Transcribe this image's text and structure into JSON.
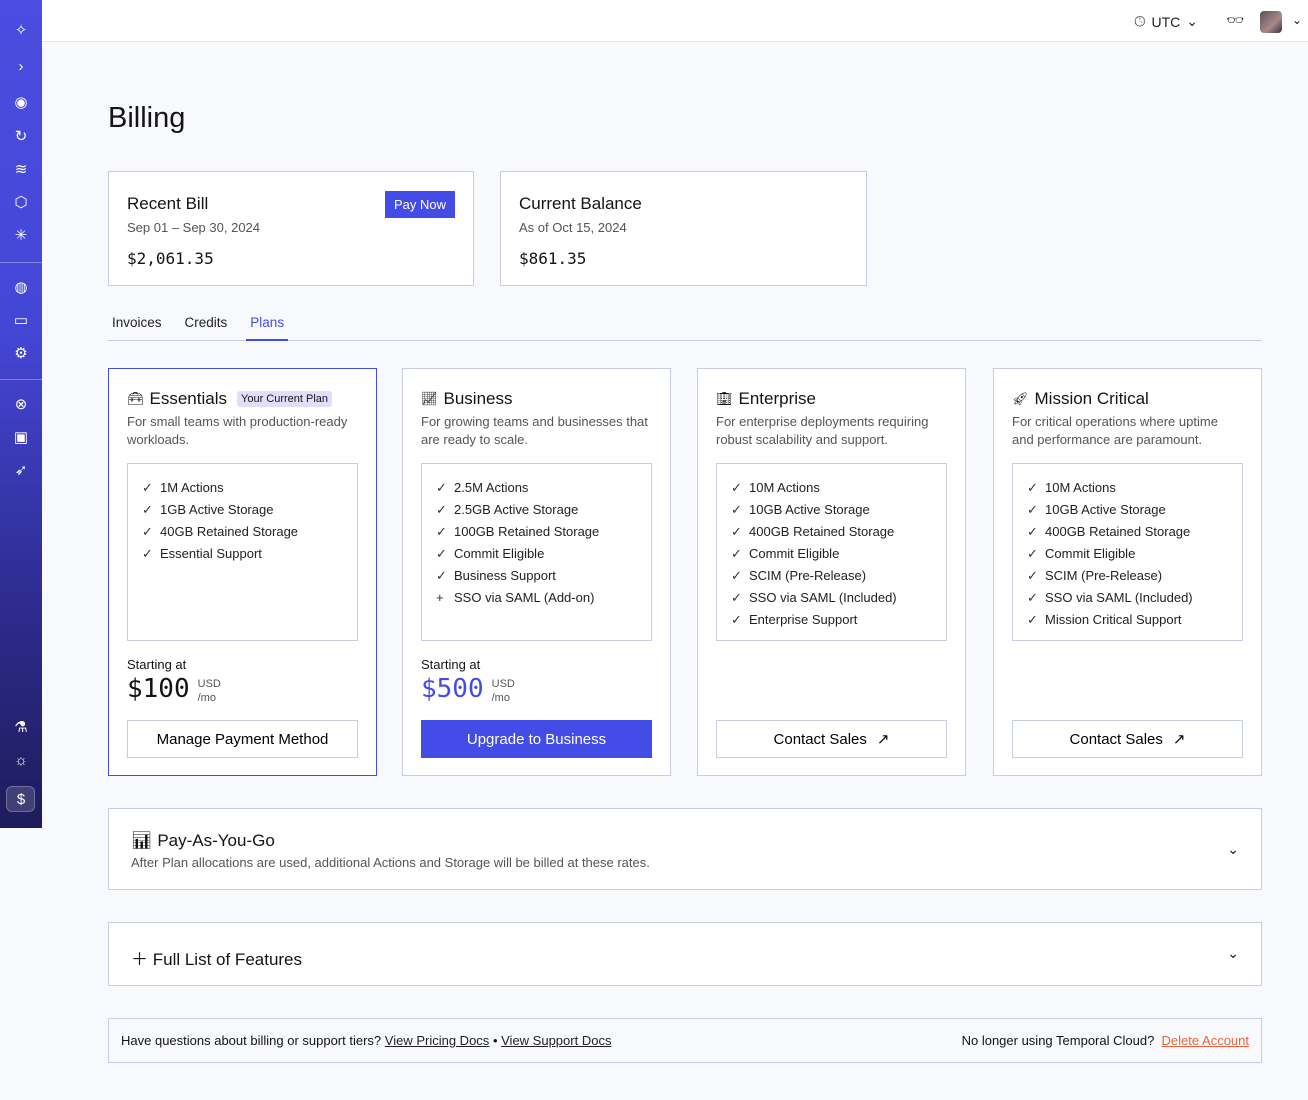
{
  "sidebar": {
    "icons": [
      "compass-icon",
      "chevron-right-icon",
      "eye-icon",
      "history-icon",
      "layers-icon",
      "cube-icon",
      "asterisk-icon",
      "globe-icon",
      "credit-card-icon",
      "gear-icon",
      "lifebuoy-icon",
      "terminal-icon",
      "rocket-icon",
      "flask-icon",
      "sun-icon",
      "billing-icon"
    ]
  },
  "topbar": {
    "timezone": "UTC"
  },
  "page": {
    "title": "Billing"
  },
  "recent_bill": {
    "title": "Recent Bill",
    "period": "Sep 01 – Sep 30, 2024",
    "amount": "$2,061.35",
    "pay_label": "Pay Now"
  },
  "current_balance": {
    "title": "Current Balance",
    "as_of": "As of Oct 15, 2024",
    "amount": "$861.35"
  },
  "tabs": [
    {
      "label": "Invoices"
    },
    {
      "label": "Credits"
    },
    {
      "label": "Plans",
      "active": true
    }
  ],
  "plans": [
    {
      "name": "Essentials",
      "icon": "toolbox-icon",
      "badge": "Your Current Plan",
      "desc": "For small teams with production-ready workloads.",
      "features": [
        [
          "check",
          "1M Actions"
        ],
        [
          "check",
          "1GB Active Storage"
        ],
        [
          "check",
          "40GB Retained Storage"
        ],
        [
          "check",
          "Essential Support"
        ]
      ],
      "starting": "Starting at",
      "price": "$100",
      "currency": "USD",
      "per": "/mo",
      "button": "Manage Payment Method"
    },
    {
      "name": "Business",
      "icon": "chart-line-icon",
      "desc": "For growing teams and businesses that are ready to scale.",
      "features": [
        [
          "check",
          "2.5M Actions"
        ],
        [
          "check",
          "2.5GB Active Storage"
        ],
        [
          "check",
          "100GB Retained Storage"
        ],
        [
          "check",
          "Commit Eligible"
        ],
        [
          "check",
          "Business Support"
        ],
        [
          "plus",
          "SSO via SAML (Add-on)"
        ]
      ],
      "starting": "Starting at",
      "price": "$500",
      "currency": "USD",
      "per": "/mo",
      "button": "Upgrade to Business"
    },
    {
      "name": "Enterprise",
      "icon": "building-icon",
      "desc": "For enterprise deployments requiring robust scalability and support.",
      "features": [
        [
          "check",
          "10M Actions"
        ],
        [
          "check",
          "10GB Active Storage"
        ],
        [
          "check",
          "400GB Retained Storage"
        ],
        [
          "check",
          "Commit Eligible"
        ],
        [
          "check",
          "SCIM (Pre-Release)"
        ],
        [
          "check",
          "SSO via SAML (Included)"
        ],
        [
          "check",
          "Enterprise Support"
        ]
      ],
      "button": "Contact Sales"
    },
    {
      "name": "Mission Critical",
      "icon": "rocket-icon",
      "desc": "For critical operations where uptime and performance are paramount.",
      "features": [
        [
          "check",
          "10M Actions"
        ],
        [
          "check",
          "10GB Active Storage"
        ],
        [
          "check",
          "400GB Retained Storage"
        ],
        [
          "check",
          "Commit Eligible"
        ],
        [
          "check",
          "SCIM (Pre-Release)"
        ],
        [
          "check",
          "SSO via SAML (Included)"
        ],
        [
          "check",
          "Mission Critical Support"
        ]
      ],
      "button": "Contact Sales"
    }
  ],
  "payg": {
    "title": "Pay-As-You-Go",
    "desc": "After Plan allocations are used, additional Actions and Storage will be billed at these rates."
  },
  "features_list": {
    "title": "Full List of Features"
  },
  "footer": {
    "question": "Have questions about billing or support tiers?",
    "pricing_link": "View Pricing Docs",
    "sep": "•",
    "support_link": "View Support Docs",
    "leaving": "No longer using Temporal Cloud?",
    "delete_link": "Delete Account"
  },
  "colors": {
    "accent": "#444ce7",
    "danger": "#e8643c",
    "badge": "#e4dcfb"
  }
}
